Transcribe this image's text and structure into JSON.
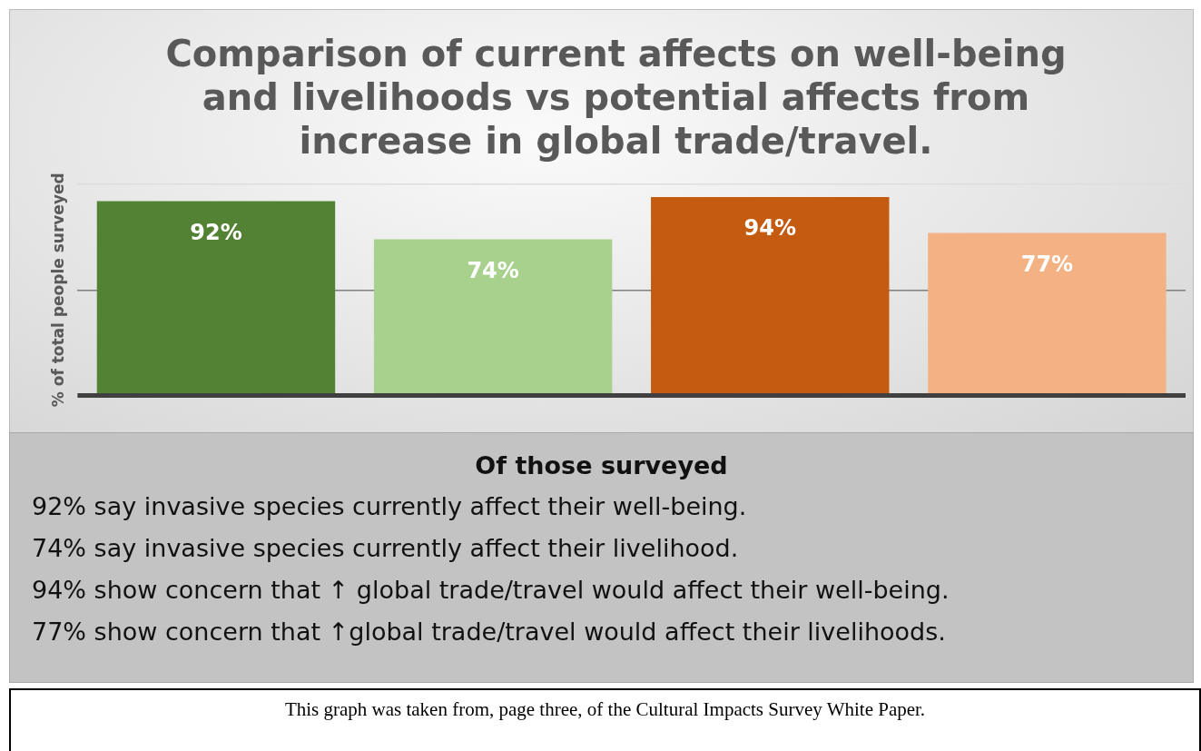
{
  "chart_data": {
    "type": "bar",
    "title": "Comparison of current affects on well-being and livelihoods vs potential affects from increase in global trade/travel.",
    "ylabel": "% of total people surveyed",
    "categories": [
      null,
      null,
      null,
      null
    ],
    "values": [
      92,
      74,
      94,
      77
    ],
    "colors": [
      "#548235",
      "#a9d18e",
      "#c55a11",
      "#f4b183"
    ],
    "value_labels": [
      "92%",
      "74%",
      "94%",
      "77%"
    ],
    "ylim": [
      0,
      100
    ],
    "yticks": [
      {
        "value": 0,
        "label": null
      },
      {
        "value": 50,
        "label": null
      },
      {
        "value": 100,
        "label": null
      }
    ],
    "grid": "y",
    "legend": false,
    "annotations": [
      "Of those surveyed",
      "92% say invasive species currently affect their well-being.",
      "74% say invasive species currently affect their livelihood.",
      "94% show concern that ↑ global trade/travel would affect their well-being.",
      "77% show concern that ↑global trade/travel would affect their livelihoods.",
      "This graph was taken from, page three, of the Cultural Impacts Survey White Paper."
    ]
  }
}
